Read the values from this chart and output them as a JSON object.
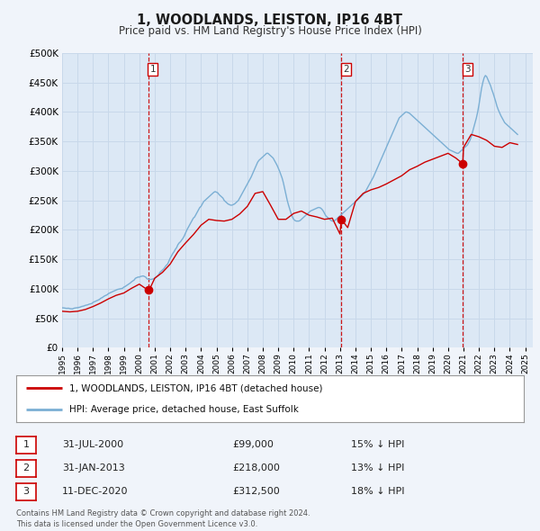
{
  "title": "1, WOODLANDS, LEISTON, IP16 4BT",
  "subtitle": "Price paid vs. HM Land Registry's House Price Index (HPI)",
  "background_color": "#f0f4fa",
  "plot_bg_color": "#dce8f5",
  "grid_color": "#c8d8ea",
  "ylim": [
    0,
    500000
  ],
  "yticks": [
    0,
    50000,
    100000,
    150000,
    200000,
    250000,
    300000,
    350000,
    400000,
    450000,
    500000
  ],
  "xlim_start": 1995.0,
  "xlim_end": 2025.5,
  "sale_points": [
    {
      "year_float": 2000.58,
      "price": 99000,
      "label": "1"
    },
    {
      "year_float": 2013.08,
      "price": 218000,
      "label": "2"
    },
    {
      "year_float": 2020.95,
      "price": 312500,
      "label": "3"
    }
  ],
  "vline_color": "#cc0000",
  "sale_dot_color": "#cc0000",
  "red_line_color": "#cc0000",
  "blue_line_color": "#7bafd4",
  "legend_entries": [
    "1, WOODLANDS, LEISTON, IP16 4BT (detached house)",
    "HPI: Average price, detached house, East Suffolk"
  ],
  "table_rows": [
    {
      "num": "1",
      "date": "31-JUL-2000",
      "price": "£99,000",
      "hpi": "15% ↓ HPI"
    },
    {
      "num": "2",
      "date": "31-JAN-2013",
      "price": "£218,000",
      "hpi": "13% ↓ HPI"
    },
    {
      "num": "3",
      "date": "11-DEC-2020",
      "price": "£312,500",
      "hpi": "18% ↓ HPI"
    }
  ],
  "footnote": "Contains HM Land Registry data © Crown copyright and database right 2024.\nThis data is licensed under the Open Government Licence v3.0.",
  "hpi_data_x": [
    1995.0,
    1995.083,
    1995.167,
    1995.25,
    1995.333,
    1995.417,
    1995.5,
    1995.583,
    1995.667,
    1995.75,
    1995.833,
    1995.917,
    1996.0,
    1996.083,
    1996.167,
    1996.25,
    1996.333,
    1996.417,
    1996.5,
    1996.583,
    1996.667,
    1996.75,
    1996.833,
    1996.917,
    1997.0,
    1997.083,
    1997.167,
    1997.25,
    1997.333,
    1997.417,
    1997.5,
    1997.583,
    1997.667,
    1997.75,
    1997.833,
    1997.917,
    1998.0,
    1998.083,
    1998.167,
    1998.25,
    1998.333,
    1998.417,
    1998.5,
    1998.583,
    1998.667,
    1998.75,
    1998.833,
    1998.917,
    1999.0,
    1999.083,
    1999.167,
    1999.25,
    1999.333,
    1999.417,
    1999.5,
    1999.583,
    1999.667,
    1999.75,
    1999.833,
    1999.917,
    2000.0,
    2000.083,
    2000.167,
    2000.25,
    2000.333,
    2000.417,
    2000.5,
    2000.583,
    2000.667,
    2000.75,
    2000.833,
    2000.917,
    2001.0,
    2001.083,
    2001.167,
    2001.25,
    2001.333,
    2001.417,
    2001.5,
    2001.583,
    2001.667,
    2001.75,
    2001.833,
    2001.917,
    2002.0,
    2002.083,
    2002.167,
    2002.25,
    2002.333,
    2002.417,
    2002.5,
    2002.583,
    2002.667,
    2002.75,
    2002.833,
    2002.917,
    2003.0,
    2003.083,
    2003.167,
    2003.25,
    2003.333,
    2003.417,
    2003.5,
    2003.583,
    2003.667,
    2003.75,
    2003.833,
    2003.917,
    2004.0,
    2004.083,
    2004.167,
    2004.25,
    2004.333,
    2004.417,
    2004.5,
    2004.583,
    2004.667,
    2004.75,
    2004.833,
    2004.917,
    2005.0,
    2005.083,
    2005.167,
    2005.25,
    2005.333,
    2005.417,
    2005.5,
    2005.583,
    2005.667,
    2005.75,
    2005.833,
    2005.917,
    2006.0,
    2006.083,
    2006.167,
    2006.25,
    2006.333,
    2006.417,
    2006.5,
    2006.583,
    2006.667,
    2006.75,
    2006.833,
    2006.917,
    2007.0,
    2007.083,
    2007.167,
    2007.25,
    2007.333,
    2007.417,
    2007.5,
    2007.583,
    2007.667,
    2007.75,
    2007.833,
    2007.917,
    2008.0,
    2008.083,
    2008.167,
    2008.25,
    2008.333,
    2008.417,
    2008.5,
    2008.583,
    2008.667,
    2008.75,
    2008.833,
    2008.917,
    2009.0,
    2009.083,
    2009.167,
    2009.25,
    2009.333,
    2009.417,
    2009.5,
    2009.583,
    2009.667,
    2009.75,
    2009.833,
    2009.917,
    2010.0,
    2010.083,
    2010.167,
    2010.25,
    2010.333,
    2010.417,
    2010.5,
    2010.583,
    2010.667,
    2010.75,
    2010.833,
    2010.917,
    2011.0,
    2011.083,
    2011.167,
    2011.25,
    2011.333,
    2011.417,
    2011.5,
    2011.583,
    2011.667,
    2011.75,
    2011.833,
    2011.917,
    2012.0,
    2012.083,
    2012.167,
    2012.25,
    2012.333,
    2012.417,
    2012.5,
    2012.583,
    2012.667,
    2012.75,
    2012.833,
    2012.917,
    2013.0,
    2013.083,
    2013.167,
    2013.25,
    2013.333,
    2013.417,
    2013.5,
    2013.583,
    2013.667,
    2013.75,
    2013.833,
    2013.917,
    2014.0,
    2014.083,
    2014.167,
    2014.25,
    2014.333,
    2014.417,
    2014.5,
    2014.583,
    2014.667,
    2014.75,
    2014.833,
    2014.917,
    2015.0,
    2015.083,
    2015.167,
    2015.25,
    2015.333,
    2015.417,
    2015.5,
    2015.583,
    2015.667,
    2015.75,
    2015.833,
    2015.917,
    2016.0,
    2016.083,
    2016.167,
    2016.25,
    2016.333,
    2016.417,
    2016.5,
    2016.583,
    2016.667,
    2016.75,
    2016.833,
    2016.917,
    2017.0,
    2017.083,
    2017.167,
    2017.25,
    2017.333,
    2017.417,
    2017.5,
    2017.583,
    2017.667,
    2017.75,
    2017.833,
    2017.917,
    2018.0,
    2018.083,
    2018.167,
    2018.25,
    2018.333,
    2018.417,
    2018.5,
    2018.583,
    2018.667,
    2018.75,
    2018.833,
    2018.917,
    2019.0,
    2019.083,
    2019.167,
    2019.25,
    2019.333,
    2019.417,
    2019.5,
    2019.583,
    2019.667,
    2019.75,
    2019.833,
    2019.917,
    2020.0,
    2020.083,
    2020.167,
    2020.25,
    2020.333,
    2020.417,
    2020.5,
    2020.583,
    2020.667,
    2020.75,
    2020.833,
    2020.917,
    2021.0,
    2021.083,
    2021.167,
    2021.25,
    2021.333,
    2021.417,
    2021.5,
    2021.583,
    2021.667,
    2021.75,
    2021.833,
    2021.917,
    2022.0,
    2022.083,
    2022.167,
    2022.25,
    2022.333,
    2022.417,
    2022.5,
    2022.583,
    2022.667,
    2022.75,
    2022.833,
    2022.917,
    2023.0,
    2023.083,
    2023.167,
    2023.25,
    2023.333,
    2023.417,
    2023.5,
    2023.583,
    2023.667,
    2023.75,
    2023.833,
    2023.917,
    2024.0,
    2024.083,
    2024.167,
    2024.25,
    2024.333,
    2024.417,
    2024.5
  ],
  "hpi_data_y": [
    68000,
    67800,
    67500,
    67000,
    67000,
    67200,
    66500,
    66200,
    66000,
    67000,
    67500,
    67800,
    68000,
    68500,
    69000,
    70000,
    70500,
    71000,
    72000,
    72500,
    73000,
    74000,
    74500,
    75000,
    77000,
    78000,
    79000,
    80000,
    81000,
    82000,
    84000,
    85000,
    86500,
    88000,
    89000,
    90000,
    92000,
    93000,
    94000,
    95000,
    96000,
    97000,
    98000,
    99000,
    99500,
    100000,
    100500,
    101000,
    103000,
    104000,
    105500,
    107000,
    108500,
    110000,
    112000,
    113500,
    115000,
    118000,
    119000,
    120000,
    120000,
    121000,
    121500,
    122000,
    121000,
    120000,
    117000,
    116500,
    116000,
    116000,
    116500,
    117000,
    118000,
    120000,
    122000,
    124000,
    128000,
    130000,
    132000,
    134000,
    137000,
    140000,
    142000,
    147000,
    152000,
    156000,
    160000,
    163000,
    167000,
    170000,
    175000,
    178000,
    180000,
    183000,
    186000,
    190000,
    195000,
    200000,
    204000,
    208000,
    212000,
    216000,
    220000,
    222000,
    226000,
    230000,
    234000,
    238000,
    240000,
    244000,
    248000,
    250000,
    252000,
    254000,
    256000,
    258000,
    260000,
    262000,
    264000,
    265000,
    264000,
    263000,
    260000,
    258000,
    256000,
    254000,
    250000,
    248000,
    246000,
    244000,
    243000,
    242000,
    242000,
    243000,
    244000,
    246000,
    248000,
    250000,
    254000,
    258000,
    262000,
    266000,
    270000,
    274000,
    278000,
    282000,
    286000,
    290000,
    295000,
    300000,
    305000,
    310000,
    315000,
    318000,
    320000,
    322000,
    324000,
    326000,
    328000,
    330000,
    330000,
    328000,
    326000,
    324000,
    322000,
    318000,
    314000,
    310000,
    305000,
    300000,
    294000,
    288000,
    280000,
    270000,
    260000,
    250000,
    242000,
    235000,
    228000,
    222000,
    218000,
    216000,
    215000,
    215000,
    215000,
    216000,
    218000,
    220000,
    222000,
    224000,
    226000,
    228000,
    230000,
    232000,
    233000,
    234000,
    235000,
    236000,
    237000,
    238000,
    238000,
    237000,
    235000,
    232000,
    228000,
    224000,
    222000,
    220000,
    218000,
    216000,
    215000,
    215000,
    216000,
    218000,
    220000,
    222000,
    224000,
    226000,
    228000,
    230000,
    232000,
    234000,
    236000,
    238000,
    240000,
    242000,
    244000,
    246000,
    248000,
    250000,
    252000,
    254000,
    256000,
    258000,
    260000,
    263000,
    266000,
    270000,
    274000,
    278000,
    282000,
    286000,
    290000,
    295000,
    300000,
    305000,
    310000,
    315000,
    320000,
    325000,
    330000,
    335000,
    340000,
    345000,
    350000,
    355000,
    360000,
    365000,
    370000,
    375000,
    380000,
    385000,
    390000,
    392000,
    394000,
    396000,
    398000,
    400000,
    400000,
    399000,
    398000,
    396000,
    394000,
    392000,
    390000,
    388000,
    386000,
    384000,
    382000,
    380000,
    378000,
    376000,
    374000,
    372000,
    370000,
    368000,
    366000,
    364000,
    362000,
    360000,
    358000,
    356000,
    354000,
    352000,
    350000,
    348000,
    346000,
    344000,
    342000,
    340000,
    338000,
    336000,
    335000,
    334000,
    333000,
    332000,
    331000,
    330000,
    330000,
    332000,
    334000,
    336000,
    338000,
    340000,
    342000,
    344000,
    348000,
    352000,
    358000,
    366000,
    374000,
    382000,
    390000,
    400000,
    412000,
    426000,
    440000,
    450000,
    458000,
    462000,
    460000,
    455000,
    450000,
    445000,
    438000,
    432000,
    425000,
    418000,
    410000,
    404000,
    399000,
    394000,
    390000,
    386000,
    382000,
    380000,
    378000,
    376000,
    374000,
    372000,
    370000,
    368000,
    366000,
    364000,
    362000
  ],
  "red_data_x": [
    1995.0,
    1995.5,
    1996.0,
    1996.5,
    1997.0,
    1997.5,
    1998.0,
    1998.5,
    1999.0,
    1999.5,
    2000.0,
    2000.5,
    2000.58,
    2000.75,
    2001.0,
    2001.5,
    2002.0,
    2002.5,
    2003.0,
    2003.5,
    2004.0,
    2004.5,
    2005.0,
    2005.5,
    2006.0,
    2006.5,
    2007.0,
    2007.5,
    2008.0,
    2008.5,
    2009.0,
    2009.5,
    2010.0,
    2010.5,
    2011.0,
    2011.5,
    2012.0,
    2012.5,
    2013.0,
    2013.08,
    2013.5,
    2014.0,
    2014.5,
    2015.0,
    2015.5,
    2016.0,
    2016.5,
    2017.0,
    2017.5,
    2018.0,
    2018.5,
    2019.0,
    2019.5,
    2020.0,
    2020.5,
    2020.95,
    2021.0,
    2021.5,
    2022.0,
    2022.5,
    2023.0,
    2023.5,
    2024.0,
    2024.5
  ],
  "red_data_y": [
    62000,
    61000,
    62000,
    65000,
    70000,
    76000,
    83000,
    89000,
    93000,
    101000,
    108000,
    99000,
    99000,
    104000,
    118000,
    128000,
    142000,
    163000,
    178000,
    192000,
    208000,
    218000,
    216000,
    215000,
    218000,
    227000,
    240000,
    262000,
    265000,
    242000,
    218000,
    218000,
    228000,
    232000,
    225000,
    222000,
    218000,
    220000,
    193000,
    218000,
    204000,
    248000,
    262000,
    268000,
    272000,
    278000,
    285000,
    292000,
    302000,
    308000,
    315000,
    320000,
    325000,
    330000,
    322000,
    312500,
    340000,
    362000,
    358000,
    352000,
    342000,
    340000,
    348000,
    345000
  ]
}
